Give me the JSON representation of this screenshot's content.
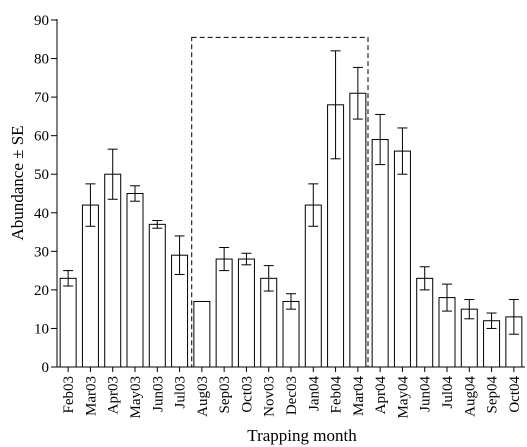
{
  "chart_data": {
    "type": "bar",
    "title": "",
    "xlabel": "Trapping month",
    "ylabel": "Abundance ± SE",
    "ylim": [
      0,
      90
    ],
    "yticks": [
      0,
      10,
      20,
      30,
      40,
      50,
      60,
      70,
      80,
      90
    ],
    "grid": false,
    "bar_color": "#ffffff",
    "edge_color": "#000000",
    "categories": [
      "Feb03",
      "Mar03",
      "Apr03",
      "May03",
      "Jun03",
      "Jul03",
      "Aug03",
      "Sep03",
      "Oct03",
      "Nov03",
      "Dec03",
      "Jan04",
      "Feb04",
      "Mar04",
      "Apr04",
      "May04",
      "Jun04",
      "Jul04",
      "Aug04",
      "Sep04",
      "Oct04"
    ],
    "values": [
      23,
      42,
      50,
      45,
      37,
      29,
      17,
      28,
      28,
      23,
      17,
      42,
      68,
      71,
      59,
      56,
      23,
      18,
      15,
      12,
      13
    ],
    "errors": [
      2,
      5.5,
      6.5,
      2,
      1,
      5,
      0,
      3,
      1.5,
      3.3,
      2,
      5.5,
      14,
      6.7,
      6.5,
      6,
      3,
      3.5,
      2.5,
      2,
      4.5
    ],
    "highlight_box": {
      "from": "Aug03",
      "to": "Mar04",
      "top_value": 85.5,
      "style": "dashed"
    }
  }
}
